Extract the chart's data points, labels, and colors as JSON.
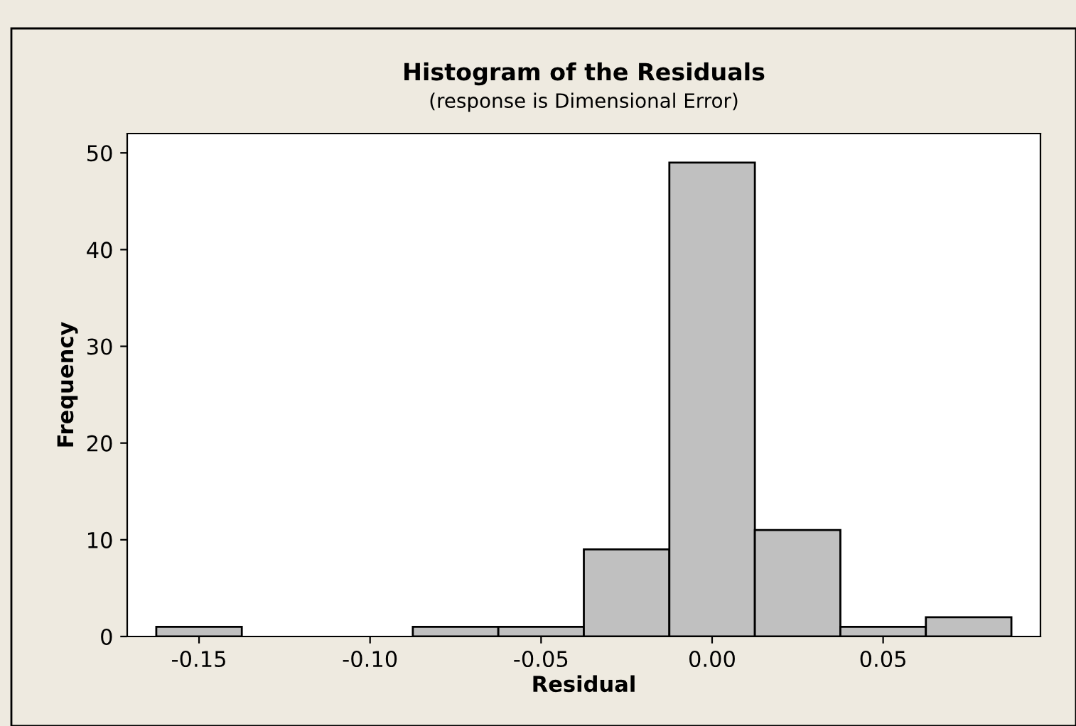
{
  "chart_data": {
    "type": "histogram",
    "title": "Histogram of the Residuals",
    "subtitle": "(response is Dimensional Error)",
    "xlabel": "Residual",
    "ylabel": "Frequency",
    "bins": [
      -0.1625,
      -0.1375,
      -0.1125,
      -0.0875,
      -0.0625,
      -0.0375,
      -0.0125,
      0.0125,
      0.0375,
      0.0625,
      0.0875
    ],
    "values": [
      1,
      0,
      0,
      1,
      1,
      9,
      49,
      11,
      1,
      2
    ],
    "color": "#c0c0c0",
    "xlim": [
      -0.171,
      0.096
    ],
    "ylim": [
      0,
      52
    ],
    "xticks": [
      {
        "value": -0.15,
        "label": "-0.15"
      },
      {
        "value": -0.1,
        "label": "-0.10"
      },
      {
        "value": -0.05,
        "label": "-0.05"
      },
      {
        "value": 0,
        "label": "0.00"
      },
      {
        "value": 0.05,
        "label": "0.05"
      }
    ],
    "yticks": [
      0,
      10,
      20,
      30,
      40,
      50
    ],
    "grid": false
  }
}
